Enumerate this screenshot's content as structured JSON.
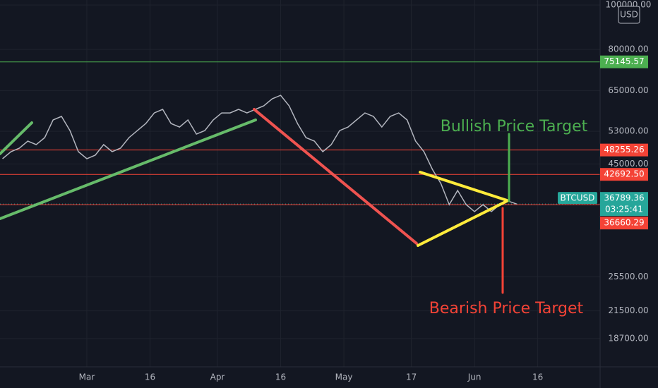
{
  "chart_data": {
    "type": "line",
    "currency": "USD",
    "yscale": "log",
    "grid": true,
    "xlim": [
      39.4,
      181.8
    ],
    "ylim": [
      16230,
      102550
    ],
    "xticks": [
      {
        "value": 60,
        "label": "Mar"
      },
      {
        "value": 75,
        "label": "16"
      },
      {
        "value": 91,
        "label": "Apr"
      },
      {
        "value": 106,
        "label": "16"
      },
      {
        "value": 121,
        "label": "May"
      },
      {
        "value": 137,
        "label": "17"
      },
      {
        "value": 152,
        "label": "Jun"
      },
      {
        "value": 167,
        "label": "16"
      }
    ],
    "yticks": [
      {
        "value": 100000,
        "label": "100000.00"
      },
      {
        "value": 80000,
        "label": "80000.00"
      },
      {
        "value": 65000,
        "label": "65000.00"
      },
      {
        "value": 53000,
        "label": "53000.00"
      },
      {
        "value": 45000,
        "label": "45000.00"
      },
      {
        "value": 25500,
        "label": "25500.00"
      },
      {
        "value": 21500,
        "label": "21500.00"
      },
      {
        "value": 18700,
        "label": "18700.00"
      }
    ],
    "x": [
      40,
      42,
      44,
      46,
      48,
      50,
      52,
      54,
      56,
      58,
      60,
      62,
      64,
      66,
      68,
      70,
      72,
      74,
      76,
      78,
      80,
      82,
      84,
      86,
      88,
      90,
      92,
      94,
      96,
      98,
      100,
      102,
      104,
      106,
      108,
      110,
      112,
      114,
      116,
      118,
      120,
      122,
      124,
      126,
      128,
      130,
      132,
      134,
      136,
      138,
      140,
      142,
      144,
      146,
      148,
      150,
      152,
      154,
      156,
      158,
      160,
      162
    ],
    "series": [
      {
        "name": "BTCUSD",
        "color": "#b2b5be",
        "values": [
          46190,
          47860,
          48710,
          50460,
          49580,
          51350,
          56130,
          57130,
          53200,
          47860,
          46190,
          47010,
          49580,
          47860,
          48710,
          51350,
          53200,
          55120,
          58140,
          59190,
          55120,
          54150,
          56130,
          52270,
          53200,
          56130,
          58140,
          58140,
          59190,
          58140,
          59190,
          60250,
          62430,
          63530,
          60250,
          55120,
          51350,
          50460,
          47860,
          49580,
          53200,
          54150,
          56130,
          58140,
          57130,
          54150,
          57130,
          58140,
          56130,
          50460,
          47860,
          43800,
          40790,
          36680,
          39370,
          36680,
          35410,
          36680,
          35410,
          36680,
          37330,
          36789.36
        ]
      }
    ],
    "last_price": {
      "value": 36789.36,
      "label": "36789.36",
      "color": "#26a69a"
    },
    "countdown": "03:25:41",
    "price_lines": [
      {
        "value": 75145.57,
        "label": "75145.57",
        "color": "#4caf50"
      },
      {
        "value": 48255.26,
        "label": "48255.26",
        "color": "#f44336"
      },
      {
        "value": 42692.5,
        "label": "42692.50",
        "color": "#f44336"
      },
      {
        "value": 36660.29,
        "label": "36660.29",
        "color": "#f44336"
      }
    ],
    "annotations": [
      {
        "text": "Bullish Price Target",
        "color": "#4caf50"
      },
      {
        "text": "Bearish Price Target",
        "color": "#f44336"
      }
    ]
  }
}
